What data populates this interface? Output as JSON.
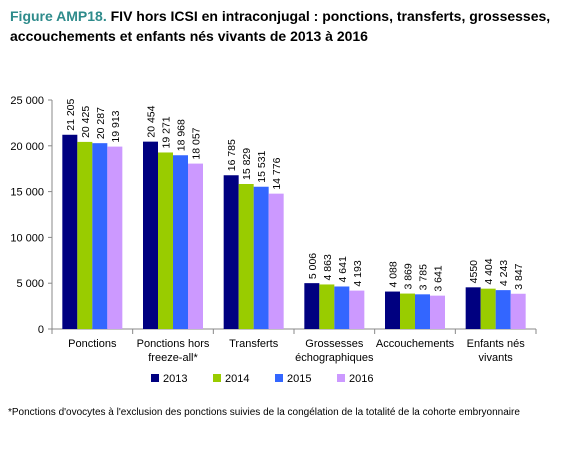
{
  "chart_data": {
    "type": "bar",
    "title_label": "Figure AMP18.",
    "title": "FIV hors ICSI en intraconjugal : ponctions, transferts, grossesses, accouchements et enfants nés vivants de 2013 à 2016",
    "categories": [
      [
        "Ponctions"
      ],
      [
        "Ponctions hors",
        "freeze-all*"
      ],
      [
        "Transferts"
      ],
      [
        "Grossesses",
        "échographiques"
      ],
      [
        "Accouchements"
      ],
      [
        "Enfants nés",
        "vivants"
      ]
    ],
    "series": [
      {
        "name": "2013",
        "color": "#000080",
        "values": [
          21205,
          20454,
          16785,
          5006,
          4088,
          4550
        ],
        "value_labels": [
          "21 205",
          "20 454",
          "16 785",
          "5 006",
          "4 088",
          "4550"
        ]
      },
      {
        "name": "2014",
        "color": "#99cc00",
        "values": [
          20425,
          19271,
          15829,
          4863,
          3869,
          4404
        ],
        "value_labels": [
          "20 425",
          "19 271",
          "15 829",
          "4 863",
          "3 869",
          "4 404"
        ]
      },
      {
        "name": "2015",
        "color": "#3366ff",
        "values": [
          20287,
          18968,
          15531,
          4641,
          3785,
          4243
        ],
        "value_labels": [
          "20 287",
          "18 968",
          "15 531",
          "4 641",
          "3 785",
          "4 243"
        ]
      },
      {
        "name": "2016",
        "color": "#cc99ff",
        "values": [
          19913,
          18057,
          14776,
          4193,
          3641,
          3847
        ],
        "value_labels": [
          "19 913",
          "18 057",
          "14 776",
          "4 193",
          "3 641",
          "3 847"
        ]
      }
    ],
    "ylim": [
      0,
      25000
    ],
    "yticks": [
      0,
      {
        "value": 5000,
        "label": "5 000"
      },
      {
        "value": 10000,
        "label": "10 000"
      },
      {
        "value": 15000,
        "label": "15 000"
      },
      {
        "value": 20000,
        "label": "20 000"
      },
      {
        "value": 25000,
        "label": "25 000"
      }
    ],
    "legend": "bottom",
    "footnote": "*Ponctions d'ovocytes à l'exclusion des ponctions suivies de la congélation de la totalité de la cohorte embryonnaire"
  }
}
